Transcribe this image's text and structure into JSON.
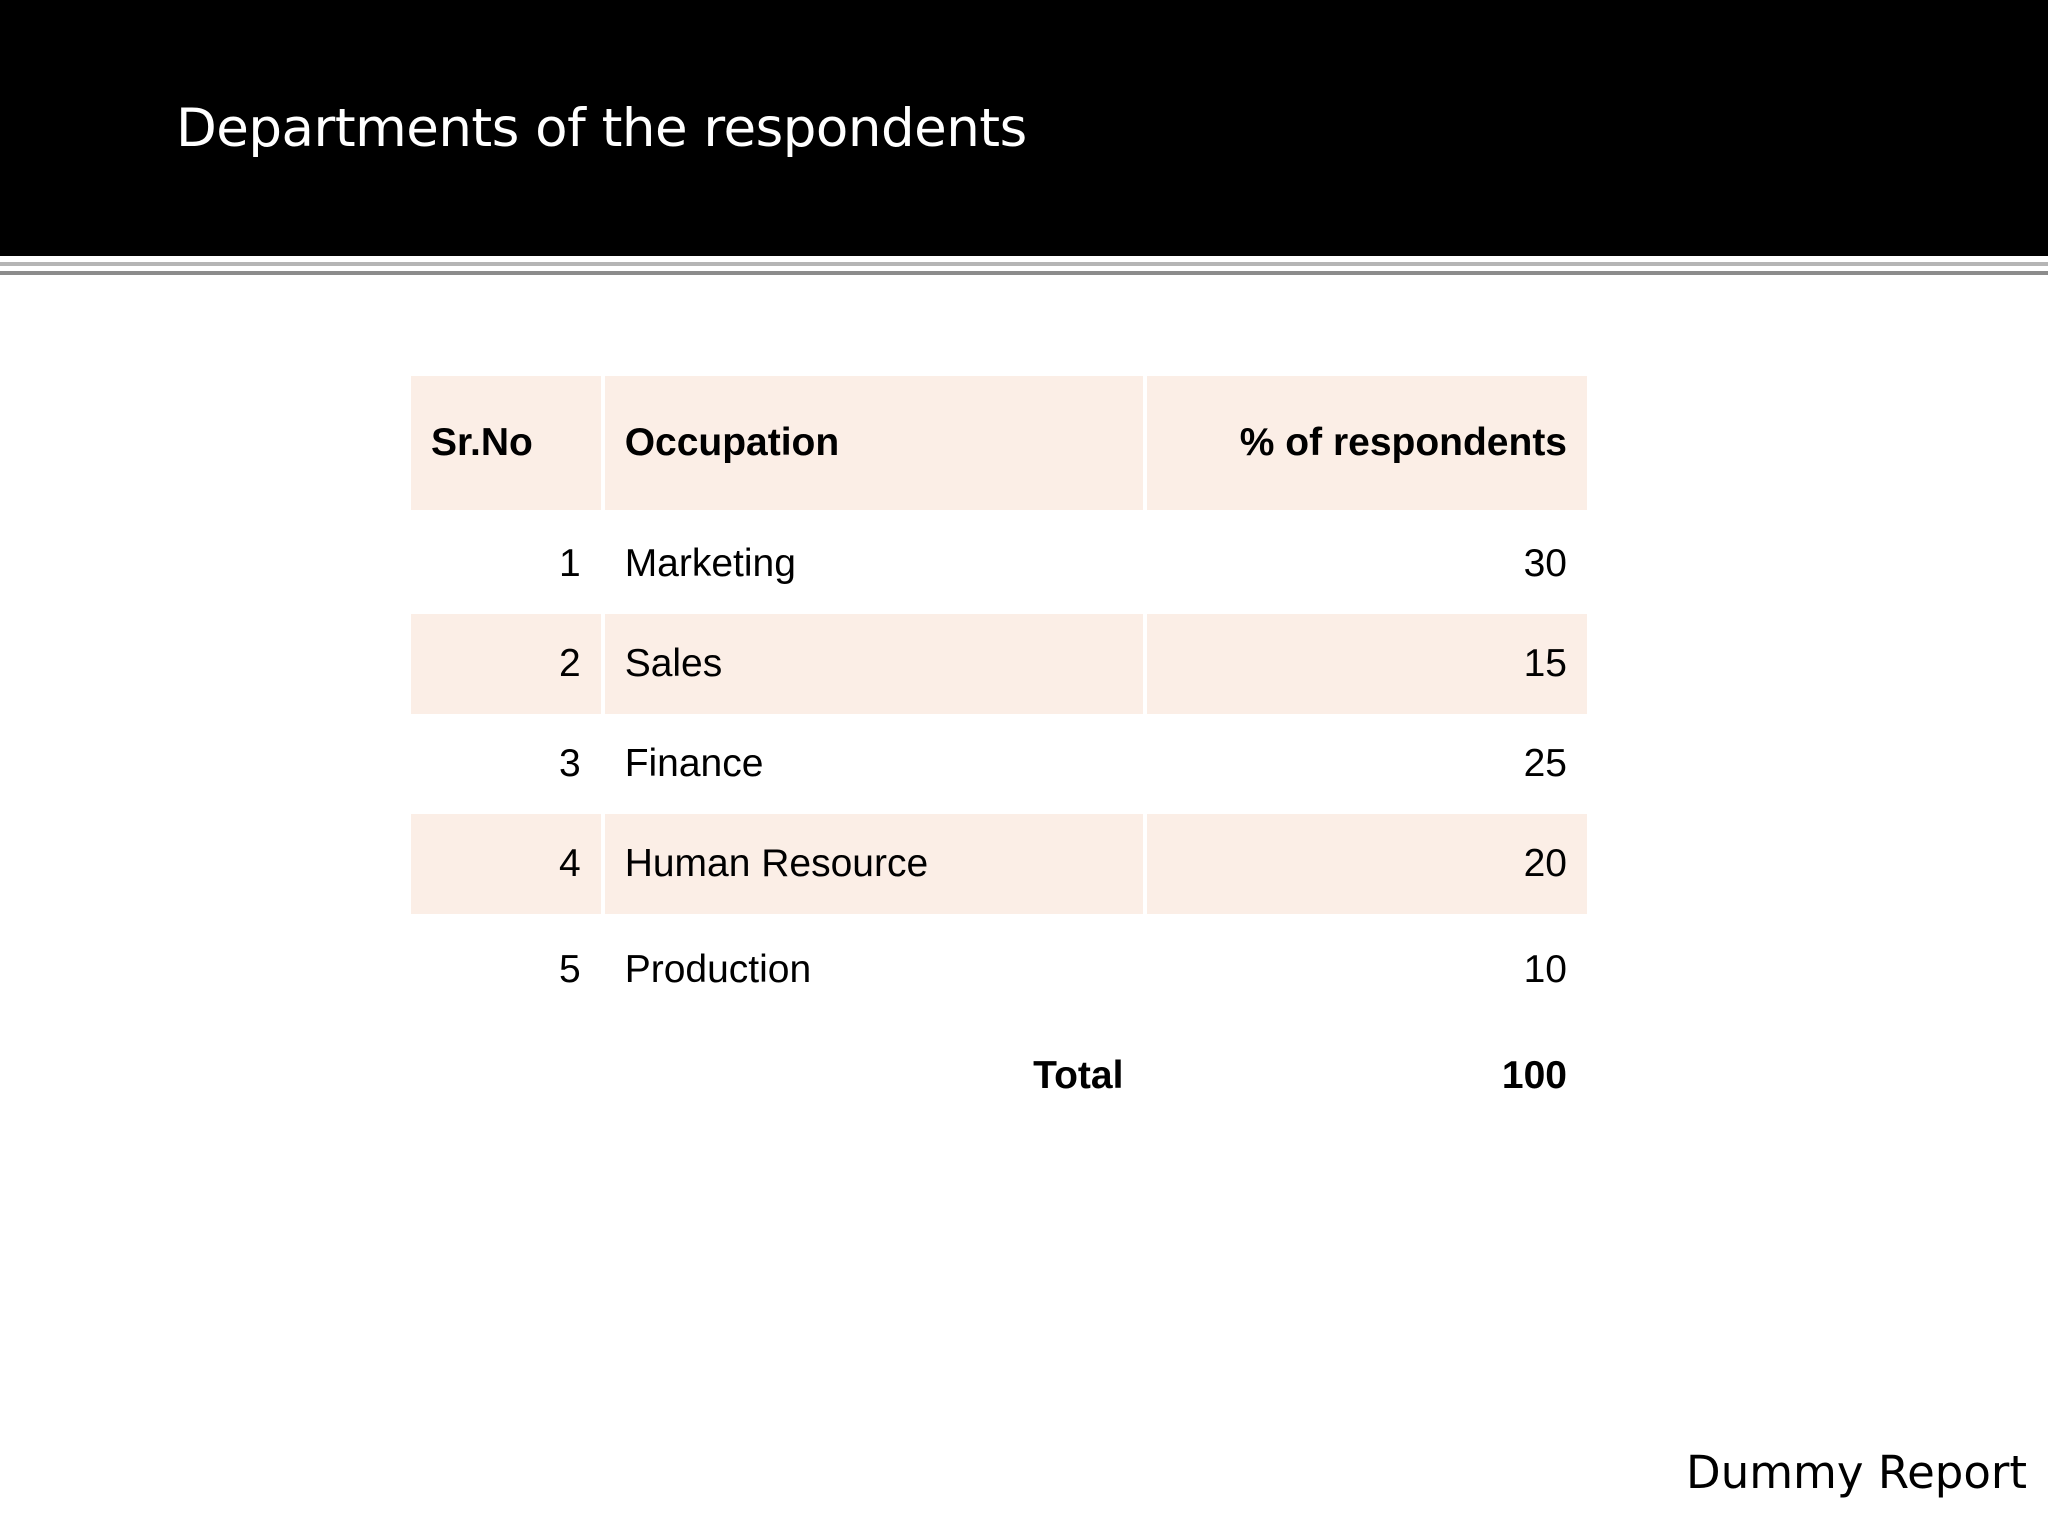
{
  "slide": {
    "title": "Departments of the respondents",
    "footer": "Dummy Report"
  },
  "table": {
    "headers": {
      "sr_no": "Sr.No",
      "occupation": "Occupation",
      "percent": "% of respondents"
    },
    "rows": [
      {
        "sr_no": "1",
        "occupation": "Marketing",
        "percent": "30"
      },
      {
        "sr_no": "2",
        "occupation": "Sales",
        "percent": "15"
      },
      {
        "sr_no": "3",
        "occupation": "Finance",
        "percent": "25"
      },
      {
        "sr_no": "4",
        "occupation": "Human Resource",
        "percent": "20"
      },
      {
        "sr_no": "5",
        "occupation": "Production",
        "percent": "10"
      }
    ],
    "total": {
      "label": "Total",
      "value": "100"
    }
  },
  "colors": {
    "header_band": "#000000",
    "band_row": "#fbeee6"
  }
}
